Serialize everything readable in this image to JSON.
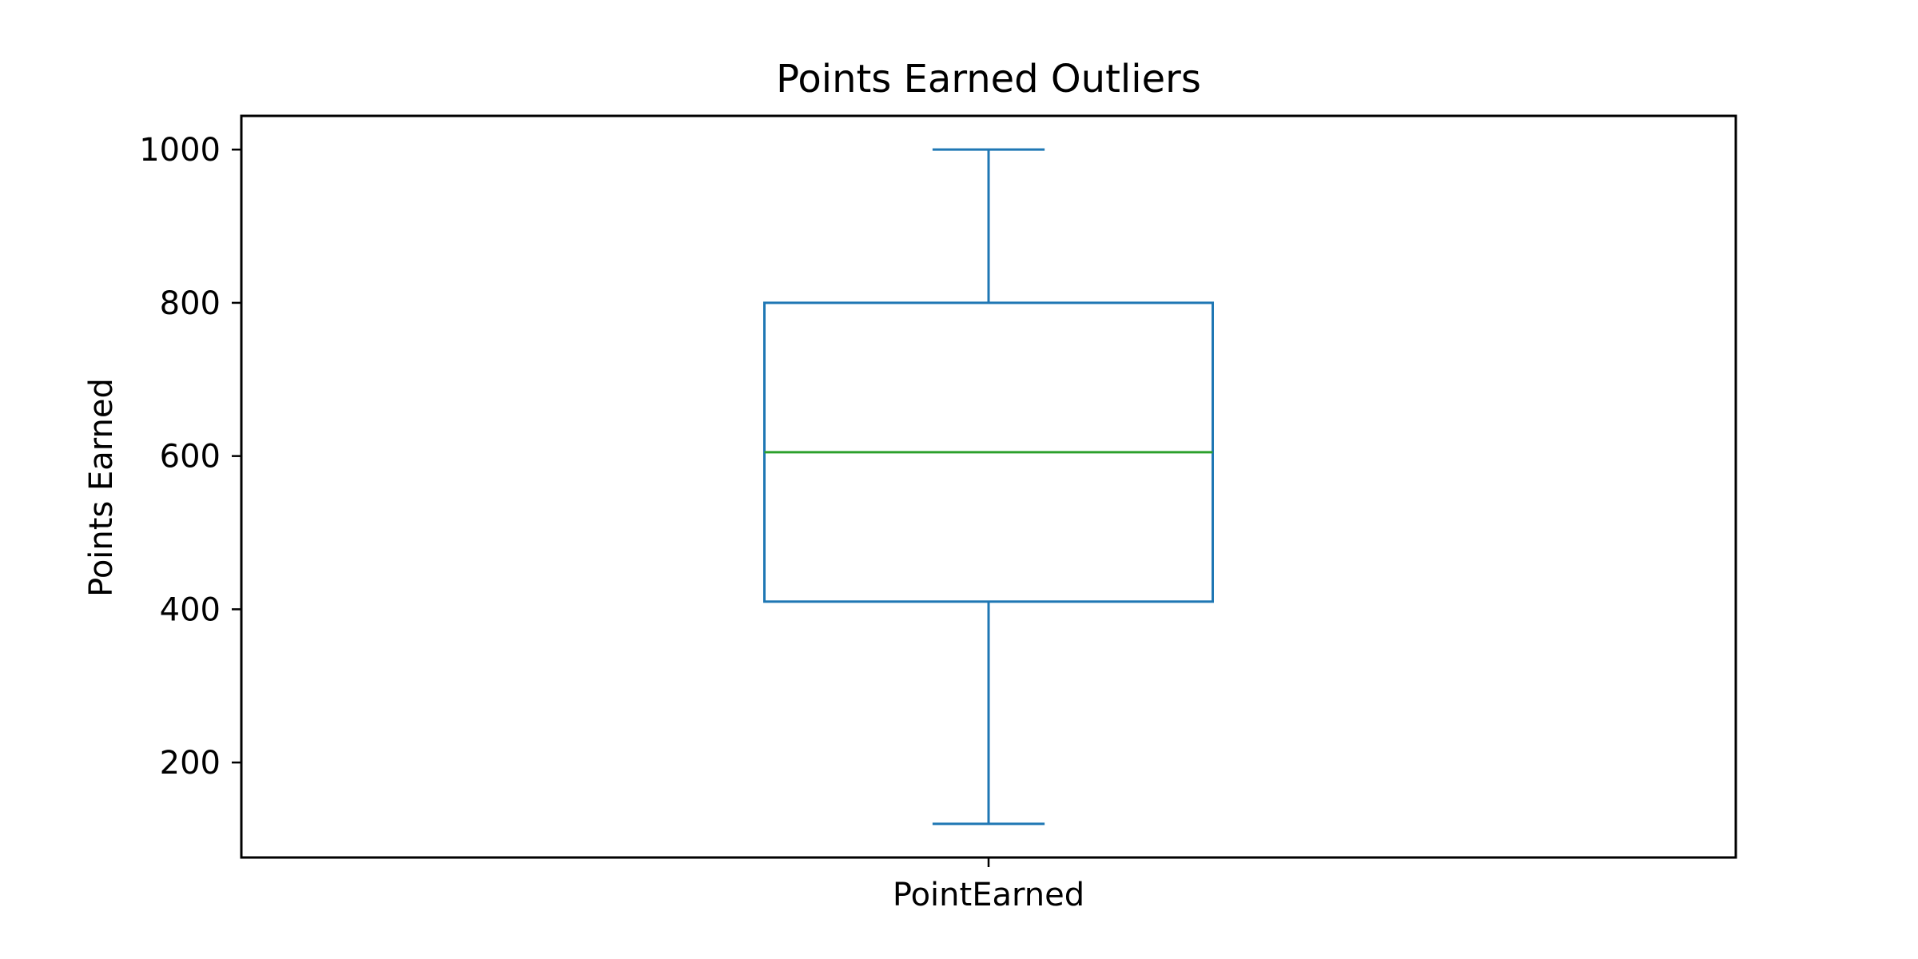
{
  "chart_data": {
    "type": "box",
    "title": "Points Earned Outliers",
    "xlabel": "",
    "ylabel": "Points Earned",
    "categories": [
      "PointEarned"
    ],
    "series": [
      {
        "name": "PointEarned",
        "whisker_low": 120,
        "q1": 410,
        "median": 605,
        "q3": 800,
        "whisker_high": 1000
      }
    ],
    "ylim": [
      76,
      1044
    ],
    "yticks": [
      200,
      400,
      600,
      800,
      1000
    ],
    "grid": false,
    "legend": "none",
    "colors": {
      "box": "#1f77b4",
      "median": "#2ca02c",
      "axis": "#000000"
    }
  }
}
